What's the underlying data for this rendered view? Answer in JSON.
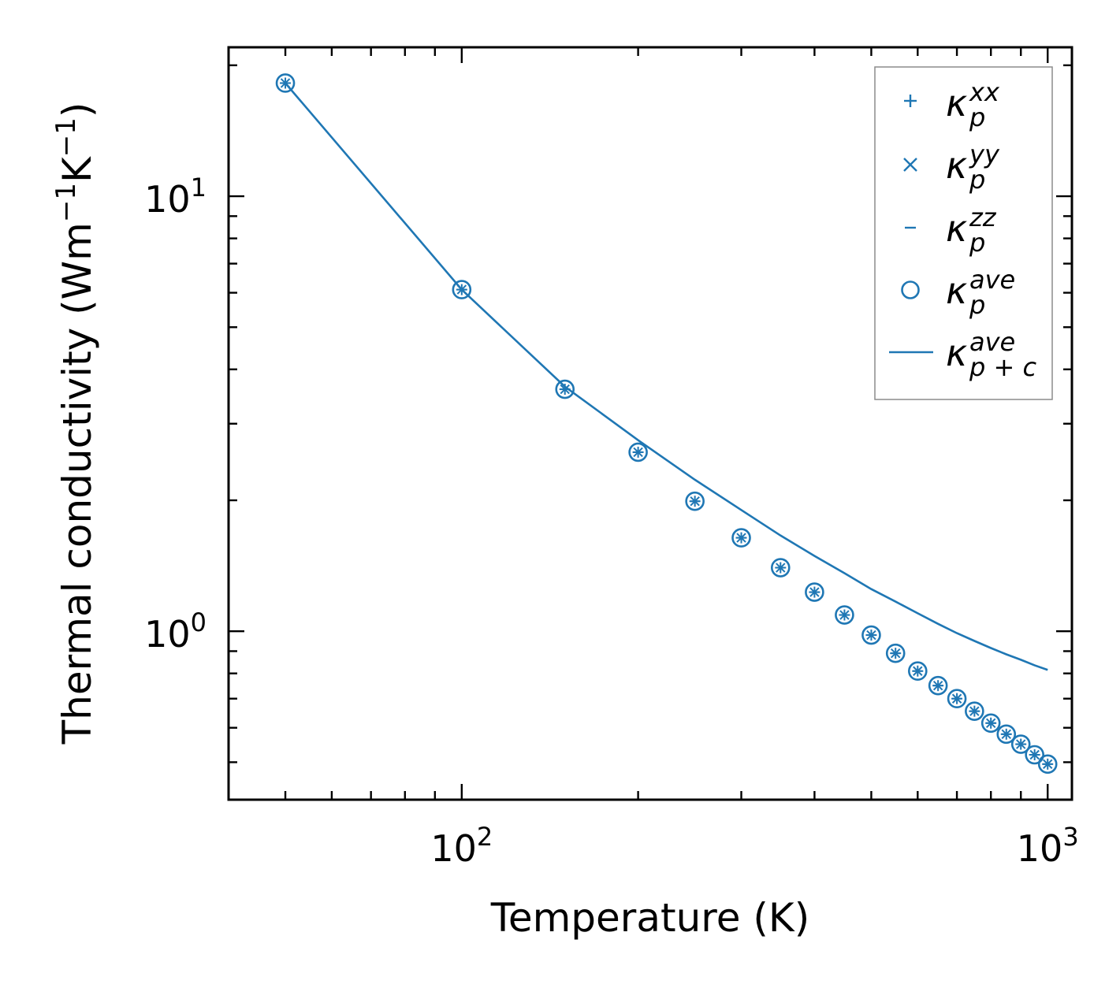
{
  "chart_data": {
    "type": "scatter",
    "xlabel": "Temperature (K)",
    "ylabel": "Thermal conductivity (Wm",
    "ylabel_unit_m": "m",
    "ylabel_exp": "−1",
    "ylabel_unit_k": "K",
    "ylabel_close": ")",
    "xscale": "log",
    "yscale": "log",
    "xlim": [
      40,
      1100
    ],
    "ylim": [
      0.41,
      22
    ],
    "x_ticks": [
      {
        "base": "10",
        "exp": "2",
        "value": 100
      },
      {
        "base": "10",
        "exp": "3",
        "value": 1000
      }
    ],
    "y_ticks": [
      {
        "base": "10",
        "exp": "0",
        "value": 1
      },
      {
        "base": "10",
        "exp": "1",
        "value": 10
      }
    ],
    "legend_position": "top-right",
    "legend": [
      {
        "marker": "plus",
        "symbol": "κ",
        "sup": "xx",
        "sub": "p"
      },
      {
        "marker": "x",
        "symbol": "κ",
        "sup": "yy",
        "sub": "p"
      },
      {
        "marker": "hline",
        "symbol": "κ",
        "sup": "zz",
        "sub": "p"
      },
      {
        "marker": "circle",
        "symbol": "κ",
        "sup": "ave",
        "sub": "p"
      },
      {
        "marker": "line",
        "symbol": "κ",
        "sup": "ave",
        "sub": "p + c"
      }
    ],
    "color": "#1f77b4",
    "x": [
      50,
      100,
      150,
      200,
      250,
      300,
      350,
      400,
      450,
      500,
      550,
      600,
      650,
      700,
      750,
      800,
      850,
      900,
      950,
      1000
    ],
    "series": [
      {
        "name": "kappa_p_xx",
        "marker": "plus",
        "values": [
          18.2,
          6.1,
          3.6,
          2.58,
          1.99,
          1.64,
          1.4,
          1.23,
          1.09,
          0.98,
          0.89,
          0.81,
          0.75,
          0.7,
          0.655,
          0.615,
          0.58,
          0.55,
          0.52,
          0.495
        ]
      },
      {
        "name": "kappa_p_yy",
        "marker": "x",
        "values": [
          18.2,
          6.1,
          3.6,
          2.58,
          1.99,
          1.64,
          1.4,
          1.23,
          1.09,
          0.98,
          0.89,
          0.81,
          0.75,
          0.7,
          0.655,
          0.615,
          0.58,
          0.55,
          0.52,
          0.495
        ]
      },
      {
        "name": "kappa_p_zz",
        "marker": "hline",
        "values": [
          18.2,
          6.1,
          3.6,
          2.58,
          1.99,
          1.64,
          1.4,
          1.23,
          1.09,
          0.98,
          0.89,
          0.81,
          0.75,
          0.7,
          0.655,
          0.615,
          0.58,
          0.55,
          0.52,
          0.495
        ]
      },
      {
        "name": "kappa_p_ave",
        "marker": "circle",
        "values": [
          18.2,
          6.1,
          3.6,
          2.58,
          1.99,
          1.64,
          1.4,
          1.23,
          1.09,
          0.98,
          0.89,
          0.81,
          0.75,
          0.7,
          0.655,
          0.615,
          0.58,
          0.55,
          0.52,
          0.495
        ]
      },
      {
        "name": "kappa_p_plus_c_ave",
        "marker": "line",
        "values": [
          18.2,
          6.1,
          3.65,
          2.75,
          2.23,
          1.9,
          1.66,
          1.49,
          1.36,
          1.25,
          1.17,
          1.1,
          1.04,
          0.99,
          0.95,
          0.915,
          0.885,
          0.86,
          0.835,
          0.815
        ]
      }
    ]
  }
}
